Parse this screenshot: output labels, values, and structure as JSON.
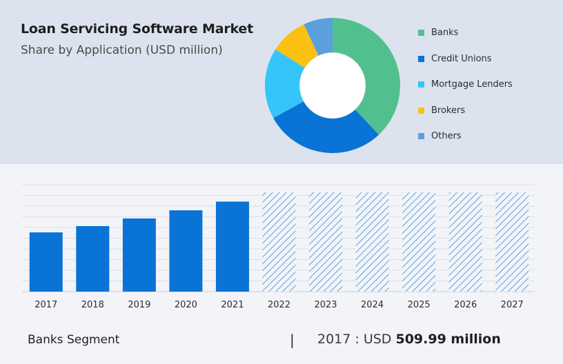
{
  "title": "Loan Servicing Software Market",
  "subtitle": "Share by Application (USD million)",
  "chart_data": [
    {
      "type": "pie",
      "donut": true,
      "categories": [
        "Banks",
        "Credit Unions",
        "Mortgage Lenders",
        "Brokers",
        "Others"
      ],
      "values": [
        38,
        29,
        17,
        9,
        7
      ],
      "colors": [
        "#52c08e",
        "#0a73d6",
        "#36c5f8",
        "#fbc112",
        "#5b9fdc"
      ],
      "legend_position": "right"
    },
    {
      "type": "bar",
      "categories": [
        "2017",
        "2018",
        "2019",
        "2020",
        "2021",
        "2022",
        "2023",
        "2024",
        "2025",
        "2026",
        "2027"
      ],
      "values": [
        509.99,
        564,
        630,
        700,
        775,
        null,
        null,
        null,
        null,
        null,
        null
      ],
      "forecast_from": "2022",
      "bar_color": "#0a73d6",
      "forecast_pattern_color": "#2e8ce0",
      "grid": true,
      "ylim": [
        0,
        920
      ]
    }
  ],
  "footer": {
    "segment": "Banks Segment",
    "separator": "|",
    "year_prefix": "2017 : USD ",
    "value": "509.99 million"
  }
}
